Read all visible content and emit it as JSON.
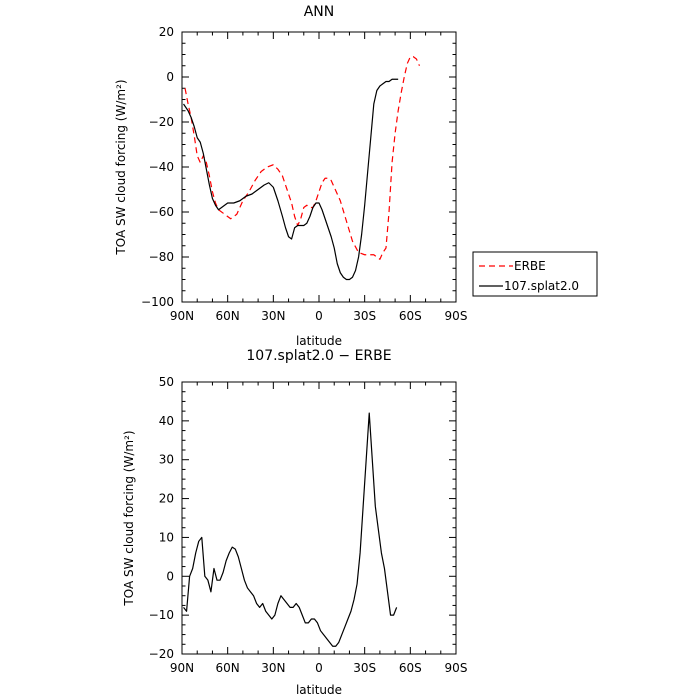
{
  "chart_data": [
    {
      "type": "line",
      "title": "ANN",
      "xlabel": "latitude",
      "ylabel": "TOA SW cloud forcing (W/m²)",
      "xlim": [
        -90,
        90
      ],
      "ylim": [
        -100,
        20
      ],
      "x_ticks": [
        -90,
        -60,
        -30,
        0,
        30,
        60,
        90
      ],
      "x_tick_labels": [
        "90N",
        "60N",
        "30N",
        "0",
        "30S",
        "60S",
        "90S"
      ],
      "y_ticks": [
        -100,
        -80,
        -60,
        -40,
        -20,
        0,
        20
      ],
      "y_tick_labels": [
        "−100",
        "−80",
        "−60",
        "−40",
        "−20",
        "0",
        "20"
      ],
      "legend_position": "right",
      "series": [
        {
          "name": "ERBE",
          "color": "#ff0000",
          "dash": "dashed",
          "points": [
            [
              -88,
              -5
            ],
            [
              -86,
              -12
            ],
            [
              -84,
              -18
            ],
            [
              -82,
              -26
            ],
            [
              -80,
              -35
            ],
            [
              -78,
              -38
            ],
            [
              -76,
              -35
            ],
            [
              -74,
              -38
            ],
            [
              -72,
              -44
            ],
            [
              -70,
              -51
            ],
            [
              -68,
              -56
            ],
            [
              -66,
              -59
            ],
            [
              -62,
              -61
            ],
            [
              -58,
              -63
            ],
            [
              -54,
              -61
            ],
            [
              -50,
              -55
            ],
            [
              -46,
              -51
            ],
            [
              -42,
              -46
            ],
            [
              -38,
              -42
            ],
            [
              -34,
              -40
            ],
            [
              -30,
              -39
            ],
            [
              -27,
              -41
            ],
            [
              -24,
              -44
            ],
            [
              -21,
              -50
            ],
            [
              -18,
              -56
            ],
            [
              -16,
              -62
            ],
            [
              -14,
              -66
            ],
            [
              -12,
              -63
            ],
            [
              -10,
              -58
            ],
            [
              -8,
              -57
            ],
            [
              -6,
              -58
            ],
            [
              -4,
              -58
            ],
            [
              -2,
              -55
            ],
            [
              0,
              -51
            ],
            [
              2,
              -47
            ],
            [
              4,
              -45
            ],
            [
              6,
              -45
            ],
            [
              8,
              -46
            ],
            [
              10,
              -49
            ],
            [
              14,
              -55
            ],
            [
              18,
              -64
            ],
            [
              22,
              -73
            ],
            [
              26,
              -78
            ],
            [
              30,
              -79
            ],
            [
              34,
              -79
            ],
            [
              36,
              -79
            ],
            [
              38,
              -80
            ],
            [
              40,
              -81
            ],
            [
              42,
              -78
            ],
            [
              44,
              -76
            ],
            [
              46,
              -60
            ],
            [
              48,
              -38
            ],
            [
              50,
              -25
            ],
            [
              52,
              -15
            ],
            [
              54,
              -7
            ],
            [
              56,
              0
            ],
            [
              58,
              6
            ],
            [
              60,
              9
            ],
            [
              62,
              9
            ],
            [
              64,
              8
            ],
            [
              66,
              5
            ]
          ]
        },
        {
          "name": "107.splat2.0",
          "color": "#000000",
          "dash": "solid",
          "points": [
            [
              -89,
              -12
            ],
            [
              -86,
              -15
            ],
            [
              -84,
              -18
            ],
            [
              -82,
              -22
            ],
            [
              -80,
              -27
            ],
            [
              -78,
              -29
            ],
            [
              -76,
              -34
            ],
            [
              -74,
              -41
            ],
            [
              -72,
              -48
            ],
            [
              -70,
              -54
            ],
            [
              -68,
              -57
            ],
            [
              -66,
              -59
            ],
            [
              -64,
              -58
            ],
            [
              -62,
              -57
            ],
            [
              -60,
              -56
            ],
            [
              -56,
              -56
            ],
            [
              -52,
              -55
            ],
            [
              -48,
              -53
            ],
            [
              -44,
              -52
            ],
            [
              -40,
              -50
            ],
            [
              -36,
              -48
            ],
            [
              -33,
              -47
            ],
            [
              -30,
              -49
            ],
            [
              -27,
              -55
            ],
            [
              -24,
              -62
            ],
            [
              -22,
              -67
            ],
            [
              -20,
              -71
            ],
            [
              -18,
              -72
            ],
            [
              -16,
              -67
            ],
            [
              -14,
              -66
            ],
            [
              -12,
              -66
            ],
            [
              -10,
              -66
            ],
            [
              -8,
              -65
            ],
            [
              -6,
              -62
            ],
            [
              -4,
              -58
            ],
            [
              -2,
              -56
            ],
            [
              0,
              -56
            ],
            [
              2,
              -59
            ],
            [
              4,
              -63
            ],
            [
              6,
              -67
            ],
            [
              8,
              -71
            ],
            [
              10,
              -76
            ],
            [
              12,
              -83
            ],
            [
              14,
              -87
            ],
            [
              16,
              -89
            ],
            [
              18,
              -90
            ],
            [
              20,
              -90
            ],
            [
              22,
              -89
            ],
            [
              24,
              -86
            ],
            [
              26,
              -80
            ],
            [
              28,
              -70
            ],
            [
              30,
              -57
            ],
            [
              32,
              -42
            ],
            [
              34,
              -27
            ],
            [
              36,
              -12
            ],
            [
              38,
              -6
            ],
            [
              40,
              -4
            ],
            [
              42,
              -3
            ],
            [
              44,
              -2
            ],
            [
              46,
              -2
            ],
            [
              48,
              -1
            ],
            [
              50,
              -1
            ],
            [
              52,
              -1
            ]
          ]
        }
      ]
    },
    {
      "type": "line",
      "title": "107.splat2.0 − ERBE",
      "xlabel": "latitude",
      "ylabel": "TOA SW cloud forcing (W/m²)",
      "xlim": [
        -90,
        90
      ],
      "ylim": [
        -20,
        50
      ],
      "x_ticks": [
        -90,
        -60,
        -30,
        0,
        30,
        60,
        90
      ],
      "x_tick_labels": [
        "90N",
        "60N",
        "30N",
        "0",
        "30S",
        "60S",
        "90S"
      ],
      "y_ticks": [
        -20,
        -10,
        0,
        10,
        20,
        30,
        40,
        50
      ],
      "y_tick_labels": [
        "−20",
        "−10",
        "0",
        "10",
        "20",
        "30",
        "40",
        "50"
      ],
      "series": [
        {
          "color": "#000000",
          "dash": "solid",
          "points": [
            [
              -89,
              -8
            ],
            [
              -87,
              -9
            ],
            [
              -85,
              0
            ],
            [
              -83,
              2
            ],
            [
              -81,
              6
            ],
            [
              -79,
              9
            ],
            [
              -77,
              10
            ],
            [
              -75,
              0
            ],
            [
              -73,
              -1
            ],
            [
              -71,
              -4
            ],
            [
              -69,
              2
            ],
            [
              -67,
              -1
            ],
            [
              -65,
              -1
            ],
            [
              -63,
              1
            ],
            [
              -61,
              4
            ],
            [
              -59,
              6
            ],
            [
              -57,
              7.5
            ],
            [
              -55,
              7
            ],
            [
              -53,
              5
            ],
            [
              -51,
              2
            ],
            [
              -49,
              -1
            ],
            [
              -47,
              -3
            ],
            [
              -45,
              -4
            ],
            [
              -43,
              -5
            ],
            [
              -41,
              -7
            ],
            [
              -39,
              -8
            ],
            [
              -37,
              -7
            ],
            [
              -35,
              -9
            ],
            [
              -33,
              -10
            ],
            [
              -31,
              -11
            ],
            [
              -29,
              -10
            ],
            [
              -27,
              -7
            ],
            [
              -25,
              -5
            ],
            [
              -23,
              -6
            ],
            [
              -21,
              -7
            ],
            [
              -19,
              -8
            ],
            [
              -17,
              -8
            ],
            [
              -15,
              -7
            ],
            [
              -13,
              -8
            ],
            [
              -11,
              -10
            ],
            [
              -9,
              -12
            ],
            [
              -7,
              -12
            ],
            [
              -5,
              -11
            ],
            [
              -3,
              -11
            ],
            [
              -1,
              -12
            ],
            [
              1,
              -14
            ],
            [
              3,
              -15
            ],
            [
              5,
              -16
            ],
            [
              7,
              -17
            ],
            [
              9,
              -18
            ],
            [
              11,
              -18
            ],
            [
              13,
              -17
            ],
            [
              15,
              -15
            ],
            [
              17,
              -13
            ],
            [
              19,
              -11
            ],
            [
              21,
              -9
            ],
            [
              23,
              -6
            ],
            [
              25,
              -2
            ],
            [
              27,
              6
            ],
            [
              29,
              18
            ],
            [
              31,
              30
            ],
            [
              33,
              42
            ],
            [
              35,
              30
            ],
            [
              37,
              18
            ],
            [
              39,
              12
            ],
            [
              41,
              6
            ],
            [
              43,
              2
            ],
            [
              45,
              -4
            ],
            [
              47,
              -10
            ],
            [
              49,
              -10
            ],
            [
              51,
              -8
            ]
          ]
        }
      ]
    }
  ]
}
